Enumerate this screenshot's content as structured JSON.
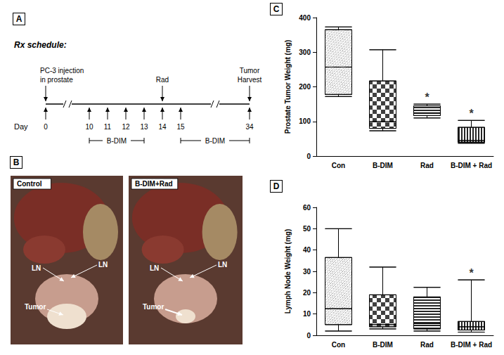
{
  "panels": {
    "schedule": {
      "panel": "A",
      "title": "Rx schedule:",
      "day_label": "Day",
      "days": [
        0,
        10,
        11,
        12,
        13,
        14,
        15,
        34
      ],
      "events": [
        {
          "day": 0,
          "lines": [
            "PC-3 injection",
            "in prostate"
          ]
        },
        {
          "day": 14,
          "lines": [
            "Rad"
          ]
        },
        {
          "day": 34,
          "lines": [
            "Tumor",
            "Harvest"
          ]
        }
      ],
      "treatments": [
        {
          "label": "B-DIM",
          "from": 10,
          "to": 13
        },
        {
          "label": "B-DIM",
          "from": 15,
          "to": 34
        }
      ]
    },
    "photos": {
      "panel": "B",
      "images": [
        {
          "title": "Control",
          "labels": [
            "LN",
            "LN",
            "Tumor"
          ]
        },
        {
          "title": "B-DIM+Rad",
          "labels": [
            "LN",
            "LN",
            "Tumor"
          ]
        }
      ]
    }
  },
  "chart_data": [
    {
      "type": "boxplot",
      "panel": "C",
      "y_label": "Prostate Tumor Weight (mg)",
      "categories": [
        "Con",
        "B-DIM",
        "Rad",
        "B-DIM + Rad"
      ],
      "values": [
        [
          172,
          178,
          257,
          365,
          373
        ],
        [
          73,
          80,
          100,
          217,
          307
        ],
        [
          110,
          117,
          125,
          145,
          150
        ],
        [
          37,
          40,
          45,
          83,
          103
        ]
      ],
      "annotations": [
        {
          "category": "Rad",
          "text": "*"
        },
        {
          "category": "B-DIM + Rad",
          "text": "*"
        }
      ],
      "color": "#000000",
      "ylim": [
        0,
        400
      ],
      "yticks": [
        0,
        100,
        200,
        300,
        400
      ],
      "grid": false
    },
    {
      "type": "boxplot",
      "panel": "D",
      "y_label": "Lymph Node Weight (mg)",
      "categories": [
        "Con",
        "B-DIM",
        "Rad",
        "B-DIM + Rad"
      ],
      "values": [
        [
          2,
          5,
          12.5,
          36.5,
          50
        ],
        [
          3,
          4,
          5,
          19,
          32
        ],
        [
          2,
          3,
          5.5,
          18,
          22.5
        ],
        [
          1.5,
          2.5,
          4,
          6.5,
          26
        ]
      ],
      "annotations": [
        {
          "category": "B-DIM + Rad",
          "text": "*"
        }
      ],
      "color": "#000000",
      "ylim": [
        0,
        60
      ],
      "yticks": [
        0,
        10,
        20,
        30,
        40,
        50,
        60
      ],
      "grid": false
    }
  ]
}
